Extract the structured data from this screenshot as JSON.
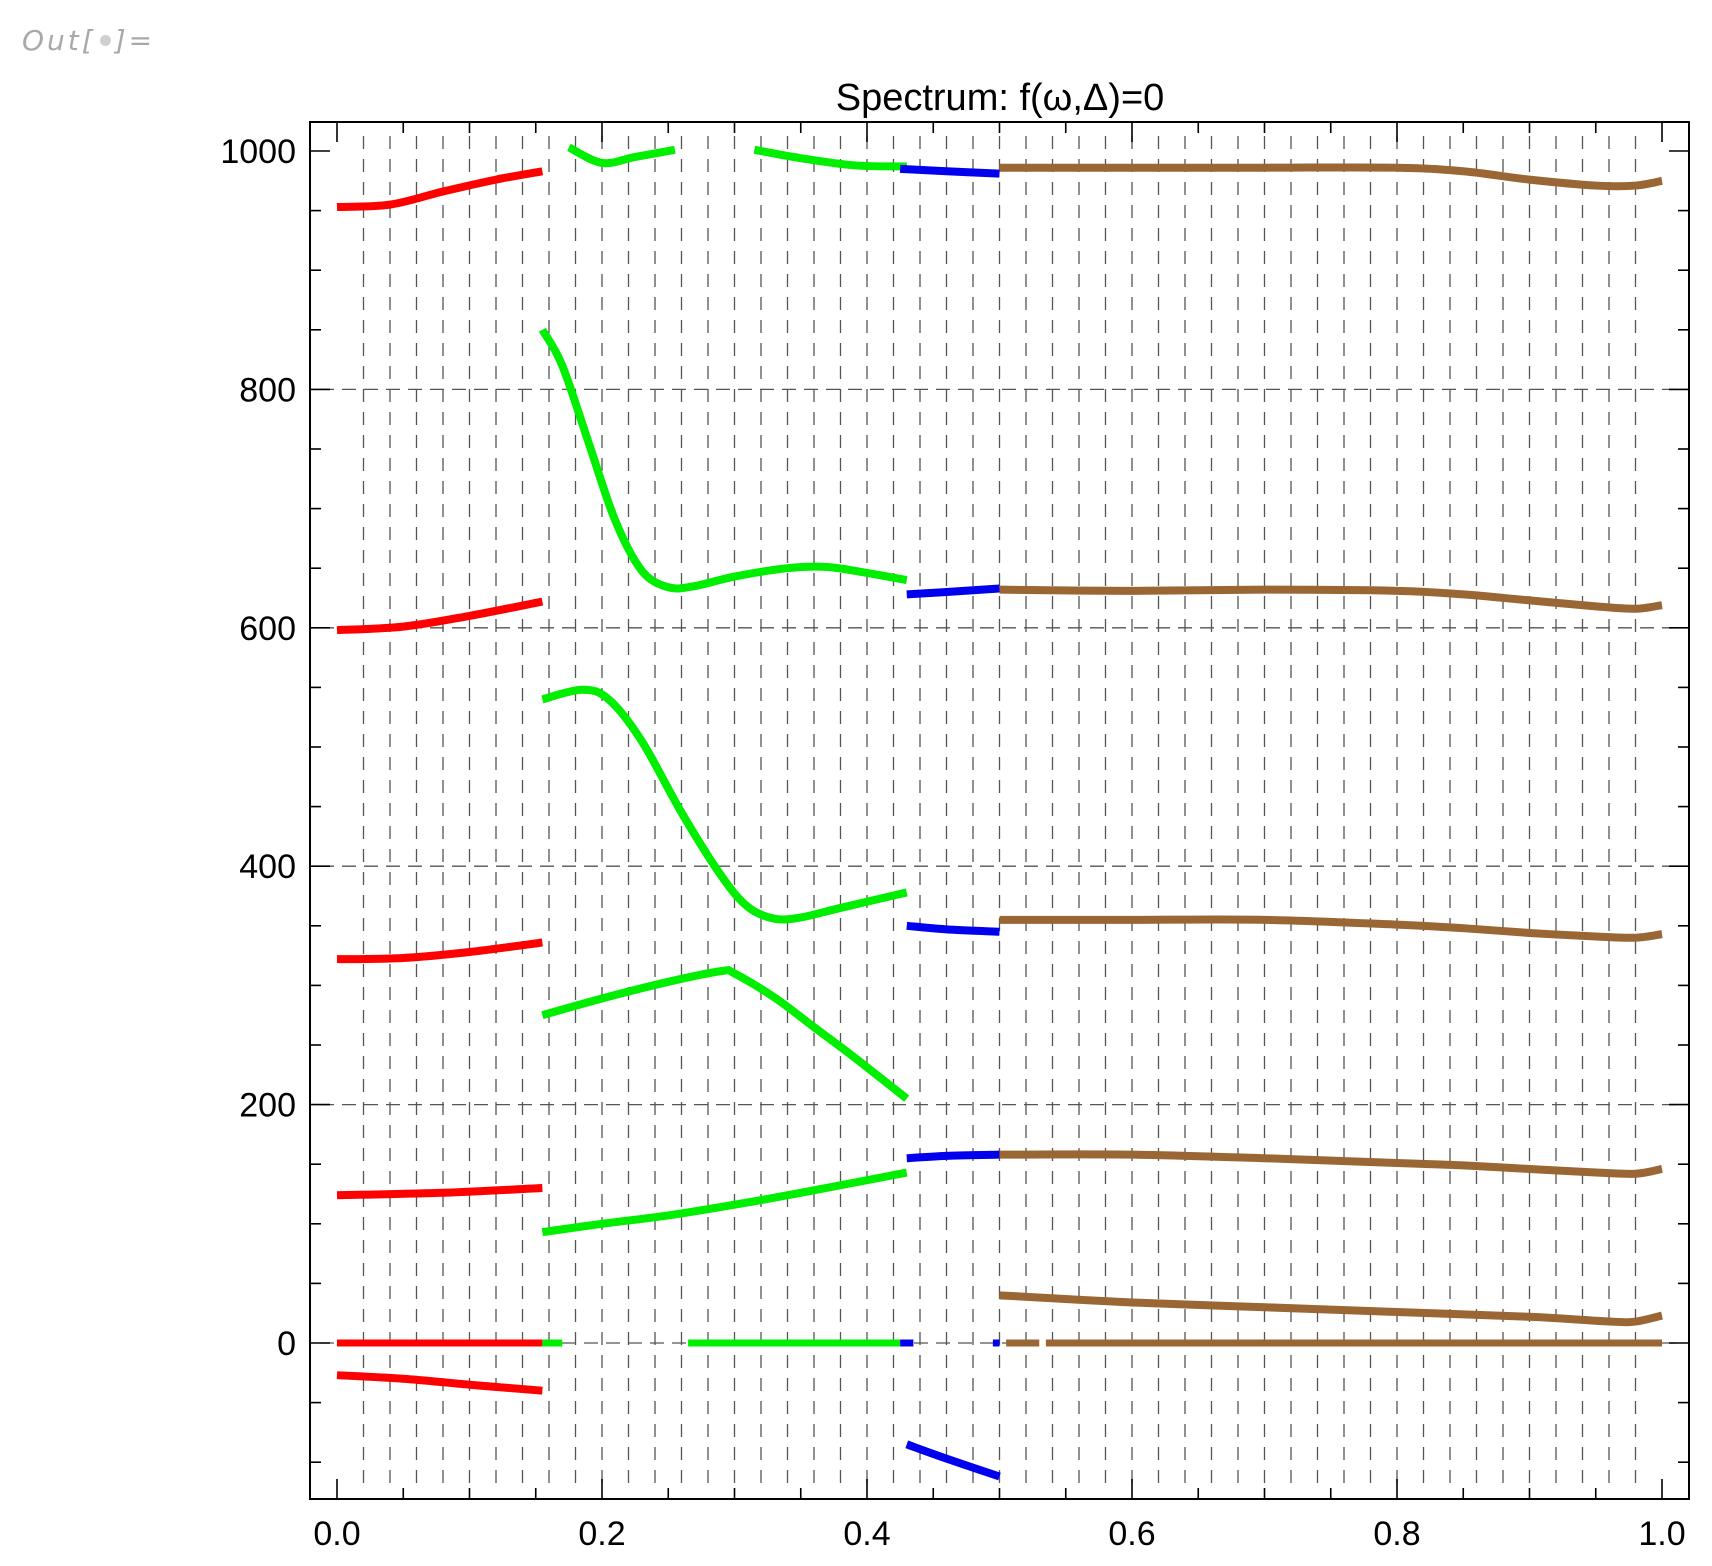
{
  "cell_label": {
    "prefix": "Out[",
    "suffix": "]="
  },
  "chart_data": {
    "type": "line",
    "title": "Spectrum: f(ω,Δ)=0",
    "xlabel": "",
    "ylabel": "",
    "xlim": [
      0.0,
      1.0
    ],
    "ylim": [
      -135,
      1025
    ],
    "x_ticks": [
      "0.0",
      "0.2",
      "0.4",
      "0.6",
      "0.8",
      "1.0"
    ],
    "y_ticks": [
      "0",
      "200",
      "400",
      "600",
      "800",
      "1000"
    ],
    "grid": "dashed vertical sample lines; dashed horizontal lines at 0, 200, 400, 600, 800",
    "colors": {
      "red": "#ff0000",
      "green": "#00ee00",
      "blue": "#0000ee",
      "brown": "#9a6633",
      "grid": "#555555"
    },
    "segments": [
      {
        "color": "red",
        "points": [
          [
            0.0,
            953
          ],
          [
            0.04,
            955
          ],
          [
            0.08,
            966
          ],
          [
            0.12,
            976
          ],
          [
            0.155,
            983
          ]
        ]
      },
      {
        "color": "red",
        "points": [
          [
            0.0,
            598
          ],
          [
            0.05,
            601
          ],
          [
            0.1,
            610
          ],
          [
            0.155,
            622
          ]
        ]
      },
      {
        "color": "red",
        "points": [
          [
            0.0,
            322
          ],
          [
            0.05,
            323
          ],
          [
            0.1,
            328
          ],
          [
            0.155,
            336
          ]
        ]
      },
      {
        "color": "red",
        "points": [
          [
            0.0,
            124
          ],
          [
            0.08,
            126
          ],
          [
            0.155,
            130
          ]
        ]
      },
      {
        "color": "red",
        "points": [
          [
            0.0,
            0
          ],
          [
            0.155,
            0
          ]
        ]
      },
      {
        "color": "red",
        "points": [
          [
            0.0,
            -27
          ],
          [
            0.05,
            -30
          ],
          [
            0.1,
            -35
          ],
          [
            0.155,
            -40
          ]
        ]
      },
      {
        "color": "green",
        "points": [
          [
            0.175,
            1003
          ],
          [
            0.2,
            990
          ],
          [
            0.225,
            995
          ],
          [
            0.255,
            1001
          ]
        ]
      },
      {
        "color": "green",
        "points": [
          [
            0.315,
            1001
          ],
          [
            0.35,
            994
          ],
          [
            0.39,
            988
          ],
          [
            0.43,
            987
          ]
        ]
      },
      {
        "color": "green",
        "points": [
          [
            0.155,
            850
          ],
          [
            0.17,
            820
          ],
          [
            0.19,
            755
          ],
          [
            0.21,
            690
          ],
          [
            0.23,
            648
          ],
          [
            0.25,
            634
          ],
          [
            0.27,
            635
          ],
          [
            0.3,
            643
          ],
          [
            0.34,
            650
          ],
          [
            0.37,
            651
          ],
          [
            0.4,
            646
          ],
          [
            0.43,
            640
          ]
        ]
      },
      {
        "color": "green",
        "points": [
          [
            0.155,
            540
          ],
          [
            0.185,
            548
          ],
          [
            0.205,
            540
          ],
          [
            0.23,
            505
          ],
          [
            0.26,
            445
          ],
          [
            0.29,
            392
          ],
          [
            0.31,
            366
          ],
          [
            0.33,
            356
          ],
          [
            0.35,
            357
          ],
          [
            0.38,
            365
          ],
          [
            0.43,
            378
          ]
        ]
      },
      {
        "color": "green",
        "points": [
          [
            0.155,
            275
          ],
          [
            0.2,
            289
          ],
          [
            0.25,
            303
          ],
          [
            0.29,
            312
          ],
          [
            0.3,
            310
          ],
          [
            0.33,
            290
          ],
          [
            0.36,
            265
          ],
          [
            0.39,
            240
          ],
          [
            0.43,
            205
          ]
        ]
      },
      {
        "color": "green",
        "points": [
          [
            0.155,
            93
          ],
          [
            0.2,
            100
          ],
          [
            0.25,
            107
          ],
          [
            0.3,
            116
          ],
          [
            0.35,
            126
          ],
          [
            0.43,
            143
          ]
        ]
      },
      {
        "color": "green",
        "points": [
          [
            0.155,
            0
          ],
          [
            0.17,
            0
          ]
        ]
      },
      {
        "color": "green",
        "points": [
          [
            0.265,
            0
          ],
          [
            0.425,
            0
          ]
        ]
      },
      {
        "color": "blue",
        "points": [
          [
            0.425,
            985
          ],
          [
            0.46,
            983
          ],
          [
            0.5,
            981
          ]
        ]
      },
      {
        "color": "blue",
        "points": [
          [
            0.43,
            628
          ],
          [
            0.46,
            630
          ],
          [
            0.5,
            633
          ]
        ]
      },
      {
        "color": "blue",
        "points": [
          [
            0.43,
            350
          ],
          [
            0.46,
            347
          ],
          [
            0.5,
            345
          ]
        ]
      },
      {
        "color": "blue",
        "points": [
          [
            0.43,
            155
          ],
          [
            0.46,
            157
          ],
          [
            0.5,
            158
          ]
        ]
      },
      {
        "color": "blue",
        "points": [
          [
            0.425,
            0
          ],
          [
            0.435,
            0
          ]
        ]
      },
      {
        "color": "blue",
        "points": [
          [
            0.495,
            0
          ],
          [
            0.5,
            0
          ]
        ]
      },
      {
        "color": "blue",
        "points": [
          [
            0.43,
            -85
          ],
          [
            0.46,
            -97
          ],
          [
            0.5,
            -112
          ]
        ]
      },
      {
        "color": "brown",
        "points": [
          [
            0.5,
            986
          ],
          [
            0.6,
            986
          ],
          [
            0.7,
            986
          ],
          [
            0.8,
            986
          ],
          [
            0.85,
            983
          ],
          [
            0.9,
            976
          ],
          [
            0.95,
            971
          ],
          [
            0.98,
            971
          ],
          [
            1.0,
            975
          ]
        ]
      },
      {
        "color": "brown",
        "points": [
          [
            0.5,
            632
          ],
          [
            0.6,
            631
          ],
          [
            0.7,
            632
          ],
          [
            0.8,
            631
          ],
          [
            0.85,
            628
          ],
          [
            0.9,
            623
          ],
          [
            0.95,
            618
          ],
          [
            0.98,
            616
          ],
          [
            1.0,
            619
          ]
        ]
      },
      {
        "color": "brown",
        "points": [
          [
            0.5,
            355
          ],
          [
            0.6,
            355
          ],
          [
            0.7,
            355
          ],
          [
            0.8,
            351
          ],
          [
            0.85,
            348
          ],
          [
            0.9,
            344
          ],
          [
            0.95,
            341
          ],
          [
            0.98,
            340
          ],
          [
            1.0,
            343
          ]
        ]
      },
      {
        "color": "brown",
        "points": [
          [
            0.5,
            158
          ],
          [
            0.6,
            158
          ],
          [
            0.7,
            155
          ],
          [
            0.8,
            151
          ],
          [
            0.85,
            149
          ],
          [
            0.9,
            146
          ],
          [
            0.95,
            143
          ],
          [
            0.98,
            142
          ],
          [
            1.0,
            146
          ]
        ]
      },
      {
        "color": "brown",
        "points": [
          [
            0.5,
            40
          ],
          [
            0.6,
            34
          ],
          [
            0.7,
            30
          ],
          [
            0.8,
            26
          ],
          [
            0.9,
            22
          ],
          [
            0.96,
            18
          ],
          [
            0.98,
            18
          ],
          [
            1.0,
            23
          ]
        ]
      },
      {
        "color": "brown",
        "points": [
          [
            0.505,
            0
          ],
          [
            0.53,
            0
          ]
        ]
      },
      {
        "color": "brown",
        "points": [
          [
            0.535,
            0
          ],
          [
            1.0,
            0
          ]
        ]
      }
    ]
  }
}
